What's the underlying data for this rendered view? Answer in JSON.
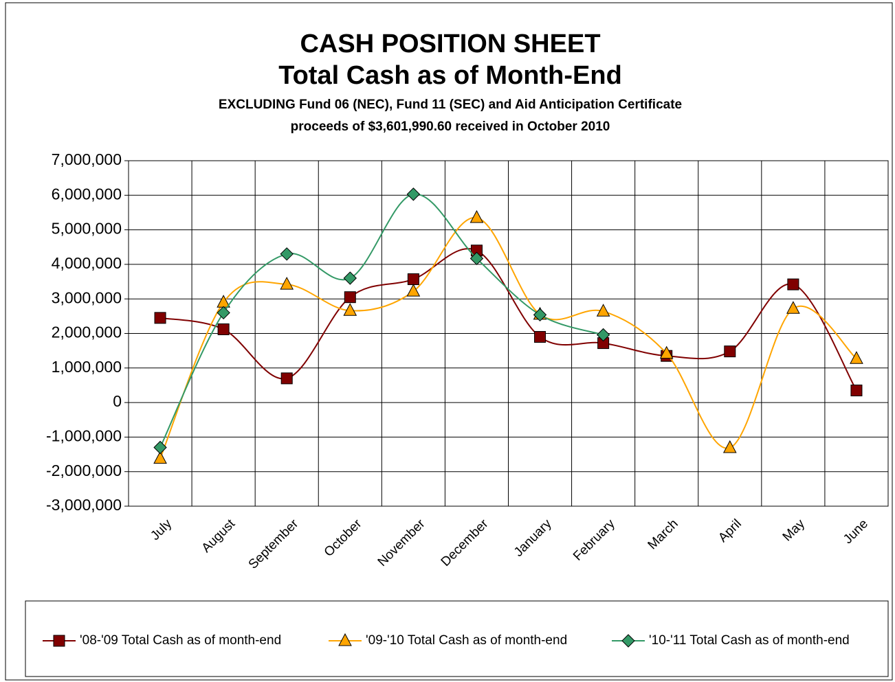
{
  "chart_data": {
    "type": "line",
    "title": [
      "CASH POSITION SHEET",
      "Total Cash as of Month-End"
    ],
    "subtitle": [
      "EXCLUDING Fund 06 (NEC), Fund 11 (SEC) and Aid Anticipation Certificate",
      "proceeds of $3,601,990.60 received in October 2010"
    ],
    "categories": [
      "July",
      "August",
      "September",
      "October",
      "November",
      "December",
      "January",
      "February",
      "March",
      "April",
      "May",
      "June"
    ],
    "series": [
      {
        "name": "'08-'09 Total Cash as of month-end",
        "color": "#800000",
        "marker": "square",
        "values": [
          2450000,
          2120000,
          700000,
          3050000,
          3570000,
          4400000,
          1900000,
          1720000,
          1350000,
          1480000,
          3420000,
          350000
        ]
      },
      {
        "name": "'09-'10 Total Cash as of month-end",
        "color": "#FFA500",
        "marker": "triangle",
        "values": [
          -1620000,
          2900000,
          3420000,
          2660000,
          3220000,
          5350000,
          2550000,
          2640000,
          1420000,
          -1310000,
          2720000,
          1270000
        ]
      },
      {
        "name": "'10-'11 Total Cash as of month-end",
        "color": "#339966",
        "marker": "diamond",
        "values": [
          -1300000,
          2600000,
          4300000,
          3600000,
          6030000,
          4170000,
          2540000,
          1960000,
          null,
          null,
          null,
          null
        ]
      }
    ],
    "ylim": [
      -3000000,
      7000000
    ],
    "yticks": [
      {
        "value": -3000000,
        "label": "-3,000,000"
      },
      {
        "value": -2000000,
        "label": "-2,000,000"
      },
      {
        "value": -1000000,
        "label": "-1,000,000"
      },
      0,
      {
        "value": 1000000,
        "label": "1,000,000"
      },
      {
        "value": 2000000,
        "label": "2,000,000"
      },
      {
        "value": 3000000,
        "label": "3,000,000"
      },
      {
        "value": 4000000,
        "label": "4,000,000"
      },
      {
        "value": 5000000,
        "label": "5,000,000"
      },
      {
        "value": 6000000,
        "label": "6,000,000"
      },
      {
        "value": 7000000,
        "label": "7,000,000"
      }
    ],
    "grid": true,
    "smooth": true,
    "legend": "bottom"
  }
}
